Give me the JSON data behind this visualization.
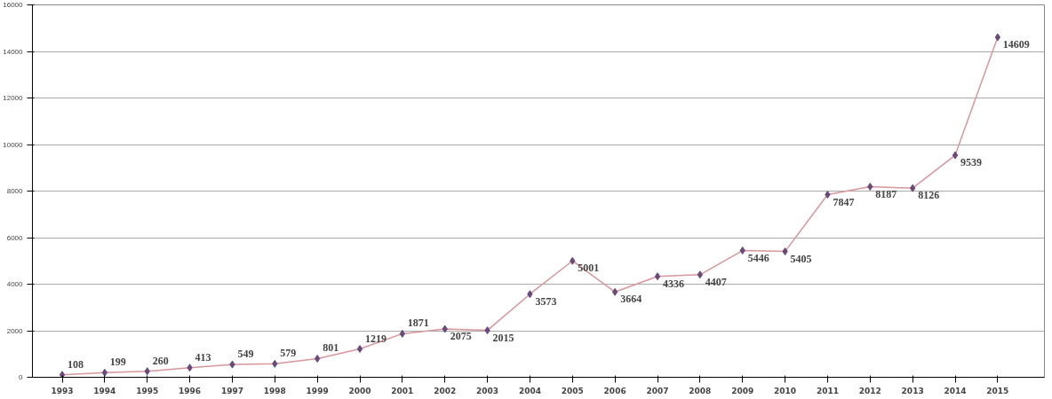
{
  "chart_data": {
    "type": "line",
    "categories": [
      "1993",
      "1994",
      "1995",
      "1996",
      "1997",
      "1998",
      "1999",
      "2000",
      "2001",
      "2002",
      "2003",
      "2004",
      "2005",
      "2006",
      "2007",
      "2008",
      "2009",
      "2010",
      "2011",
      "2012",
      "2013",
      "2014",
      "2015"
    ],
    "series": [
      {
        "color": "#d9959a",
        "values": [
          108,
          199,
          260,
          413,
          549,
          579,
          801,
          1219,
          1871,
          2075,
          2015,
          3573,
          5001,
          3664,
          4336,
          4407,
          5446,
          5405,
          7847,
          8187,
          8126,
          9539,
          14609
        ]
      }
    ],
    "ylim": [
      0,
      16000
    ],
    "yticks": [
      0,
      2000,
      4000,
      6000,
      8000,
      10000,
      12000,
      14000,
      16000
    ],
    "grid": "y",
    "marker": "diamond",
    "data_labels": true
  }
}
